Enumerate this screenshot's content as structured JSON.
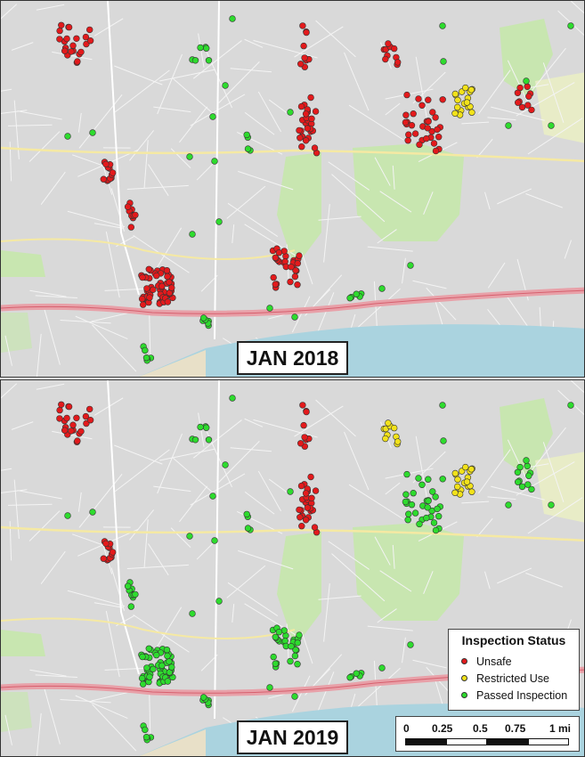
{
  "panels": [
    {
      "id": "top",
      "label": "JAN 2018"
    },
    {
      "id": "bottom",
      "label": "JAN 2019"
    }
  ],
  "legend": {
    "title": "Inspection Status",
    "items": [
      {
        "label": "Unsafe",
        "color": "#e31a1c"
      },
      {
        "label": "Restricted Use",
        "color": "#f2e21a"
      },
      {
        "label": "Passed Inspection",
        "color": "#2edb2e"
      }
    ]
  },
  "scale": {
    "ticks": [
      "0",
      "0.25",
      "0.5",
      "0.75",
      "1 mi"
    ]
  },
  "colors": {
    "land": "#d9d9d9",
    "water": "#aad3df",
    "park": "#c8e6b0",
    "highway": "#e8a0a8",
    "major_road": "#f5e9a3"
  }
}
